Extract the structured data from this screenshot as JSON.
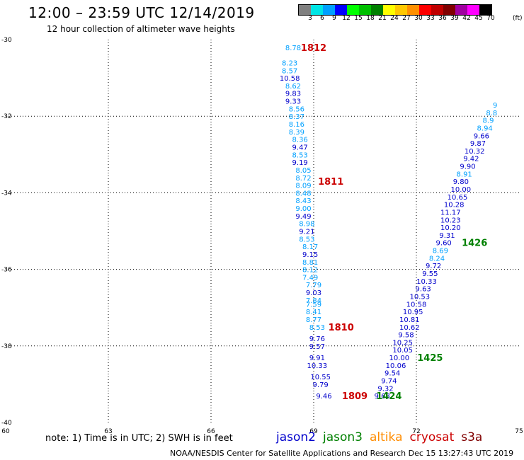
{
  "header": {
    "title": "12:00 – 23:59 UTC 12/14/2019",
    "subtitle": "12 hour collection of altimeter wave heights"
  },
  "colorbar": {
    "labels": [
      "3",
      "6",
      "9",
      "12",
      "15",
      "18",
      "21",
      "24",
      "27",
      "30",
      "33",
      "36",
      "39",
      "42",
      "45",
      "70"
    ],
    "unit": "(ft)",
    "colors": [
      "#808080",
      "#00e5e5",
      "#00a0ff",
      "#0000ff",
      "#00ff00",
      "#00c000",
      "#008000",
      "#ffff00",
      "#ffc800",
      "#ff9000",
      "#ff0000",
      "#c00000",
      "#800000",
      "#a000a0",
      "#ff00ff",
      "#000000"
    ]
  },
  "note": "note: 1) Time is in UTC; 2) SWH is in feet",
  "satellites": [
    {
      "name": "jason2",
      "color": "#0000cc"
    },
    {
      "name": "jason3",
      "color": "#008000"
    },
    {
      "name": "altika",
      "color": "#ff8c00"
    },
    {
      "name": "cryosat",
      "color": "#cc0000"
    },
    {
      "name": "s3a",
      "color": "#800000"
    }
  ],
  "footer": "NOAA/NESDIS Center for Satellite Applications and Research     Dec 15 13:27:43 UTC 2019",
  "chart_data": {
    "type": "scatter",
    "title": "12:00 – 23:59 UTC 12/14/2019",
    "subtitle": "12 hour collection of altimeter wave heights",
    "xlim": [
      60,
      75
    ],
    "ylim": [
      -40,
      -30
    ],
    "x_ticks": [
      "60",
      "63",
      "66",
      "69",
      "72",
      "75"
    ],
    "y_ticks": [
      "-30",
      "-32",
      "-34",
      "-36",
      "-38",
      "-40"
    ],
    "grid": true,
    "series": [
      {
        "name": "jason2",
        "color": "#0000cc",
        "points": [
          {
            "x": 68.4,
            "y": -30.2,
            "v": "8.78",
            "c": "#00a0ff"
          },
          {
            "x": 68.3,
            "y": -30.6,
            "v": "8.23",
            "c": "#00a0ff"
          },
          {
            "x": 68.3,
            "y": -30.8,
            "v": "8.57",
            "c": "#00a0ff"
          },
          {
            "x": 68.3,
            "y": -31.0,
            "v": "10.58",
            "c": "#0000cc"
          },
          {
            "x": 68.4,
            "y": -31.2,
            "v": "8.62",
            "c": "#00a0ff"
          },
          {
            "x": 68.4,
            "y": -31.4,
            "v": "9.83",
            "c": "#0000cc"
          },
          {
            "x": 68.4,
            "y": -31.6,
            "v": "9.33",
            "c": "#0000cc"
          },
          {
            "x": 68.5,
            "y": -31.8,
            "v": "8.56",
            "c": "#00a0ff"
          },
          {
            "x": 68.5,
            "y": -32.0,
            "v": "8.37",
            "c": "#00a0ff"
          },
          {
            "x": 68.5,
            "y": -32.2,
            "v": "8.16",
            "c": "#00a0ff"
          },
          {
            "x": 68.5,
            "y": -32.4,
            "v": "8.39",
            "c": "#00a0ff"
          },
          {
            "x": 68.6,
            "y": -32.6,
            "v": "8.36",
            "c": "#00a0ff"
          },
          {
            "x": 68.6,
            "y": -32.8,
            "v": "9.47",
            "c": "#0000cc"
          },
          {
            "x": 68.6,
            "y": -33.0,
            "v": "8.53",
            "c": "#00a0ff"
          },
          {
            "x": 68.6,
            "y": -33.2,
            "v": "9.19",
            "c": "#0000cc"
          },
          {
            "x": 68.7,
            "y": -33.4,
            "v": "8.05",
            "c": "#00a0ff"
          },
          {
            "x": 68.7,
            "y": -33.6,
            "v": "8.72",
            "c": "#00a0ff"
          },
          {
            "x": 68.7,
            "y": -33.8,
            "v": "8.09",
            "c": "#00a0ff"
          },
          {
            "x": 68.7,
            "y": -34.0,
            "v": "8.48",
            "c": "#00a0ff"
          },
          {
            "x": 68.7,
            "y": -34.2,
            "v": "8.43",
            "c": "#00a0ff"
          },
          {
            "x": 68.7,
            "y": -34.4,
            "v": "9.00",
            "c": "#00a0ff"
          },
          {
            "x": 68.7,
            "y": -34.6,
            "v": "9.49",
            "c": "#0000cc"
          },
          {
            "x": 68.8,
            "y": -34.8,
            "v": "8.98",
            "c": "#00a0ff"
          },
          {
            "x": 68.8,
            "y": -35.0,
            "v": "9.21",
            "c": "#0000cc"
          },
          {
            "x": 68.8,
            "y": -35.2,
            "v": "8.53",
            "c": "#00a0ff"
          },
          {
            "x": 68.9,
            "y": -35.4,
            "v": "8.17",
            "c": "#00a0ff"
          },
          {
            "x": 68.9,
            "y": -35.6,
            "v": "9.15",
            "c": "#0000cc"
          },
          {
            "x": 68.9,
            "y": -35.8,
            "v": "8.81",
            "c": "#00a0ff"
          },
          {
            "x": 68.9,
            "y": -36.0,
            "v": "8.12",
            "c": "#00a0ff"
          },
          {
            "x": 68.9,
            "y": -36.2,
            "v": "7.49",
            "c": "#00a0ff"
          },
          {
            "x": 69.0,
            "y": -36.4,
            "v": "7.79",
            "c": "#00a0ff"
          },
          {
            "x": 69.0,
            "y": -36.6,
            "v": "9.03",
            "c": "#0000cc"
          },
          {
            "x": 69.0,
            "y": -36.8,
            "v": "7.84",
            "c": "#00a0ff"
          },
          {
            "x": 69.0,
            "y": -36.9,
            "v": "7.59",
            "c": "#00a0ff"
          },
          {
            "x": 69.0,
            "y": -37.1,
            "v": "8.41",
            "c": "#00a0ff"
          },
          {
            "x": 69.0,
            "y": -37.3,
            "v": "8.77",
            "c": "#00a0ff"
          },
          {
            "x": 69.1,
            "y": -37.5,
            "v": "8.53",
            "c": "#00a0ff"
          },
          {
            "x": 69.1,
            "y": -37.8,
            "v": "9.76",
            "c": "#0000cc"
          },
          {
            "x": 69.1,
            "y": -38.0,
            "v": "9.57",
            "c": "#0000cc"
          },
          {
            "x": 69.1,
            "y": -38.3,
            "v": "9.91",
            "c": "#0000cc"
          },
          {
            "x": 69.1,
            "y": -38.5,
            "v": "10.33",
            "c": "#0000cc"
          },
          {
            "x": 69.2,
            "y": -38.8,
            "v": "10.55",
            "c": "#0000cc"
          },
          {
            "x": 69.2,
            "y": -39.0,
            "v": "9.79",
            "c": "#0000cc"
          },
          {
            "x": 69.3,
            "y": -39.3,
            "v": "9.46",
            "c": "#0000cc"
          }
        ]
      },
      {
        "name": "jason3",
        "color": "#008000",
        "points": [
          {
            "x": 71.0,
            "y": -39.3,
            "v": "9.68",
            "c": "#0000cc"
          },
          {
            "x": 71.1,
            "y": -39.1,
            "v": "9.32",
            "c": "#0000cc"
          },
          {
            "x": 71.2,
            "y": -38.9,
            "v": "9.74",
            "c": "#0000cc"
          },
          {
            "x": 71.3,
            "y": -38.7,
            "v": "9.54",
            "c": "#0000cc"
          },
          {
            "x": 71.4,
            "y": -38.5,
            "v": "10.06",
            "c": "#0000cc"
          },
          {
            "x": 71.5,
            "y": -38.3,
            "v": "10.00",
            "c": "#0000cc"
          },
          {
            "x": 71.6,
            "y": -38.1,
            "v": "10.05",
            "c": "#0000cc"
          },
          {
            "x": 71.6,
            "y": -37.9,
            "v": "10.25",
            "c": "#0000cc"
          },
          {
            "x": 71.7,
            "y": -37.7,
            "v": "9.58",
            "c": "#0000cc"
          },
          {
            "x": 71.8,
            "y": -37.5,
            "v": "10.62",
            "c": "#0000cc"
          },
          {
            "x": 71.8,
            "y": -37.3,
            "v": "10.81",
            "c": "#0000cc"
          },
          {
            "x": 71.9,
            "y": -37.1,
            "v": "10.95",
            "c": "#0000cc"
          },
          {
            "x": 72.0,
            "y": -36.9,
            "v": "10.58",
            "c": "#0000cc"
          },
          {
            "x": 72.1,
            "y": -36.7,
            "v": "10.53",
            "c": "#0000cc"
          },
          {
            "x": 72.2,
            "y": -36.5,
            "v": "9.63",
            "c": "#0000cc"
          },
          {
            "x": 72.3,
            "y": -36.3,
            "v": "10.33",
            "c": "#0000cc"
          },
          {
            "x": 72.4,
            "y": -36.1,
            "v": "9.55",
            "c": "#0000cc"
          },
          {
            "x": 72.5,
            "y": -35.9,
            "v": "9.72",
            "c": "#0000cc"
          },
          {
            "x": 72.6,
            "y": -35.7,
            "v": "8.24",
            "c": "#00a0ff"
          },
          {
            "x": 72.7,
            "y": -35.5,
            "v": "8.69",
            "c": "#00a0ff"
          },
          {
            "x": 72.8,
            "y": -35.3,
            "v": "9.60",
            "c": "#0000cc"
          },
          {
            "x": 72.9,
            "y": -35.1,
            "v": "9.31",
            "c": "#0000cc"
          },
          {
            "x": 73.0,
            "y": -34.9,
            "v": "10.20",
            "c": "#0000cc"
          },
          {
            "x": 73.0,
            "y": -34.7,
            "v": "10.23",
            "c": "#0000cc"
          },
          {
            "x": 73.0,
            "y": -34.5,
            "v": "11.17",
            "c": "#0000cc"
          },
          {
            "x": 73.1,
            "y": -34.3,
            "v": "10.28",
            "c": "#0000cc"
          },
          {
            "x": 73.2,
            "y": -34.1,
            "v": "10.65",
            "c": "#0000cc"
          },
          {
            "x": 73.3,
            "y": -33.9,
            "v": "10.00",
            "c": "#0000cc"
          },
          {
            "x": 73.3,
            "y": -33.7,
            "v": "9.80",
            "c": "#0000cc"
          },
          {
            "x": 73.4,
            "y": -33.5,
            "v": "8.91",
            "c": "#00a0ff"
          },
          {
            "x": 73.5,
            "y": -33.3,
            "v": "9.90",
            "c": "#0000cc"
          },
          {
            "x": 73.6,
            "y": -33.1,
            "v": "9.42",
            "c": "#0000cc"
          },
          {
            "x": 73.7,
            "y": -32.9,
            "v": "10.32",
            "c": "#0000cc"
          },
          {
            "x": 73.8,
            "y": -32.7,
            "v": "9.87",
            "c": "#0000cc"
          },
          {
            "x": 73.9,
            "y": -32.5,
            "v": "9.66",
            "c": "#0000cc"
          },
          {
            "x": 74.0,
            "y": -32.3,
            "v": "8.94",
            "c": "#00a0ff"
          },
          {
            "x": 74.1,
            "y": -32.1,
            "v": "8.9",
            "c": "#00a0ff"
          },
          {
            "x": 74.2,
            "y": -31.9,
            "v": "8.8",
            "c": "#00a0ff"
          },
          {
            "x": 74.3,
            "y": -31.7,
            "v": "9",
            "c": "#00a0ff"
          }
        ]
      }
    ],
    "time_labels": [
      {
        "x": 69.0,
        "y": -30.2,
        "label": "1812",
        "color": "#cc0000"
      },
      {
        "x": 69.5,
        "y": -33.7,
        "label": "1811",
        "color": "#cc0000"
      },
      {
        "x": 69.8,
        "y": -37.5,
        "label": "1810",
        "color": "#cc0000"
      },
      {
        "x": 70.2,
        "y": -39.3,
        "label": "1809",
        "color": "#cc0000"
      },
      {
        "x": 73.7,
        "y": -35.3,
        "label": "1426",
        "color": "#008000"
      },
      {
        "x": 72.4,
        "y": -38.3,
        "label": "1425",
        "color": "#008000"
      },
      {
        "x": 71.2,
        "y": -39.3,
        "label": "1424",
        "color": "#008000"
      }
    ]
  }
}
